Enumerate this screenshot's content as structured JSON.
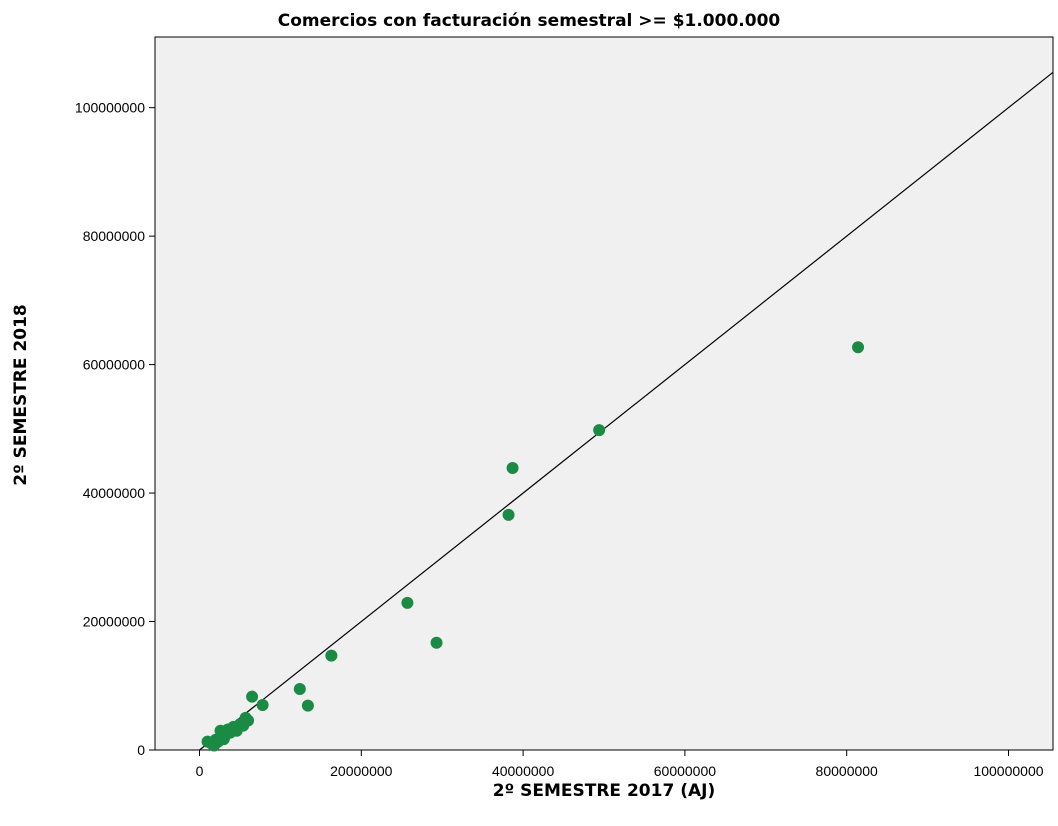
{
  "chart_data": {
    "type": "scatter",
    "title": "Comercios con facturación semestral >= $1.000.000",
    "xlabel": "2º SEMESTRE 2017 (AJ)",
    "ylabel": "2º SEMESTRE 2018",
    "xlim": [
      -5500000,
      105500000
    ],
    "ylim": [
      0,
      111000000
    ],
    "xticks": [
      0,
      20000000,
      40000000,
      60000000,
      80000000,
      100000000
    ],
    "xtick_labels": [
      "0",
      "20000000",
      "40000000",
      "60000000",
      "80000000",
      "100000000"
    ],
    "yticks": [
      0,
      20000000,
      40000000,
      60000000,
      80000000,
      100000000
    ],
    "ytick_labels": [
      "0",
      "20000000",
      "40000000",
      "60000000",
      "80000000",
      "100000000"
    ],
    "grid": false,
    "background": "#f0f0f0",
    "marker_color": "#1b8a44",
    "line_color": "#000000",
    "series": [
      {
        "points": [
          [
            1000000,
            1300000
          ],
          [
            1500000,
            1000000
          ],
          [
            1800000,
            700000
          ],
          [
            2000000,
            1600000
          ],
          [
            2300000,
            1300000
          ],
          [
            2600000,
            3000000
          ],
          [
            3000000,
            1700000
          ],
          [
            3200000,
            2300000
          ],
          [
            3500000,
            3200000
          ],
          [
            3800000,
            2700000
          ],
          [
            4200000,
            3600000
          ],
          [
            4600000,
            3000000
          ],
          [
            5000000,
            4000000
          ],
          [
            5400000,
            3800000
          ],
          [
            5700000,
            5000000
          ],
          [
            6000000,
            4600000
          ],
          [
            6500000,
            8300000
          ],
          [
            7800000,
            7000000
          ],
          [
            12400000,
            9500000
          ],
          [
            13400000,
            6900000
          ],
          [
            16300000,
            14700000
          ],
          [
            25700000,
            22900000
          ],
          [
            29300000,
            16700000
          ],
          [
            38200000,
            36600000
          ],
          [
            38700000,
            43900000
          ],
          [
            49400000,
            49800000
          ],
          [
            81400000,
            62700000
          ]
        ]
      }
    ],
    "reference_line": {
      "slope": 1,
      "intercept": 0
    }
  }
}
